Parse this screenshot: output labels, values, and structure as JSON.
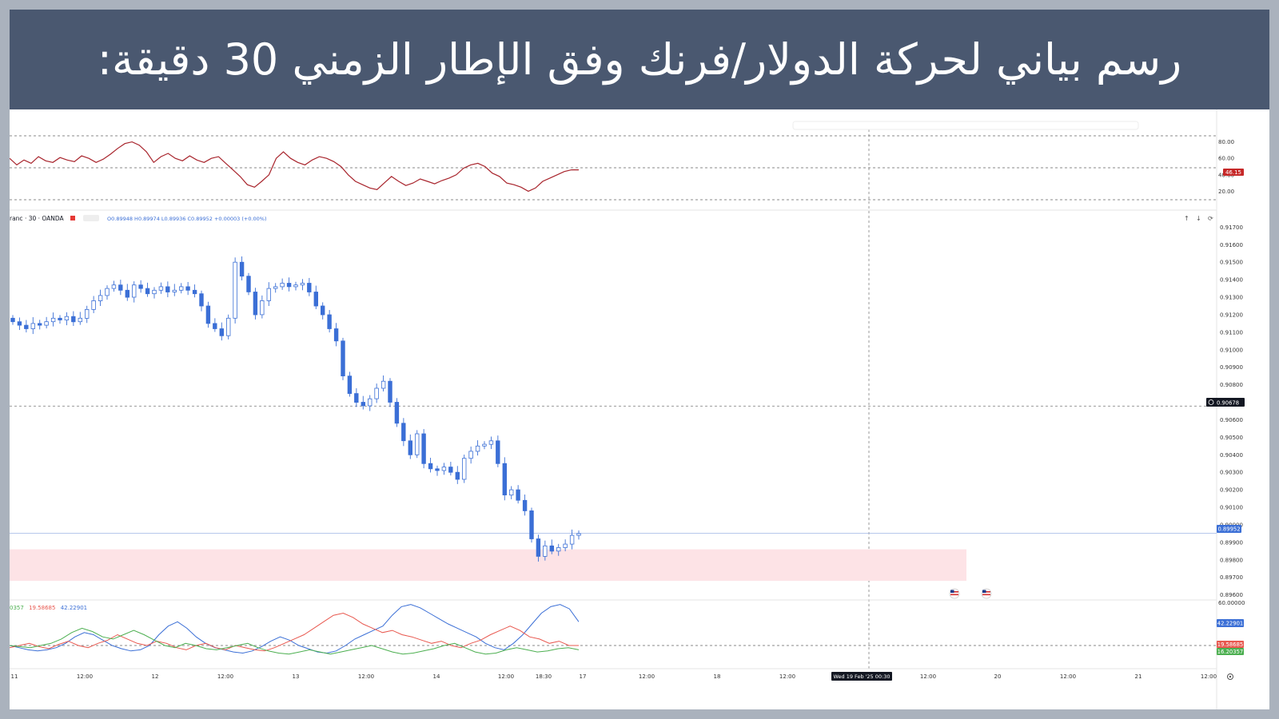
{
  "banner": {
    "title": "رسم بياني لحركة الدولار/فرنك وفق الإطار الزمني 30 دقيقة:"
  },
  "colors": {
    "banner_bg": "#4a5870",
    "candle": "#3b6fd6",
    "rsi_line": "#a8242c",
    "zone_fill": "#fde3e6",
    "adx_line": "#3b6fd6",
    "di_minus": "#e8584f",
    "di_plus": "#4caf50",
    "price_badge": "#3b6fd6",
    "rsi_badge": "#c62828",
    "cursor_badge": "#131722"
  },
  "icons": [
    "add-circle-icon",
    "us-flag-icon",
    "settings-icon",
    "arrow-up-icon",
    "arrow-down-icon",
    "refresh-icon"
  ],
  "chart_data": [
    {
      "type": "line",
      "panel": "RSI",
      "ylim": [
        0,
        100
      ],
      "y_ticks": [
        "80.00",
        "60.00",
        "40.00",
        "20.00"
      ],
      "levels": [
        80,
        50,
        20
      ],
      "current_value_label": "46.15",
      "x_session_count": 80,
      "values": [
        60,
        52,
        58,
        54,
        62,
        57,
        55,
        61,
        58,
        56,
        63,
        60,
        55,
        59,
        65,
        72,
        78,
        80,
        76,
        68,
        55,
        62,
        66,
        60,
        57,
        63,
        58,
        55,
        60,
        62,
        54,
        46,
        38,
        28,
        25,
        32,
        40,
        60,
        68,
        60,
        55,
        52,
        58,
        62,
        60,
        56,
        50,
        40,
        32,
        28,
        24,
        22,
        30,
        38,
        32,
        27,
        30,
        35,
        32,
        29,
        33,
        36,
        40,
        48,
        52,
        54,
        50,
        42,
        38,
        30,
        28,
        25,
        20,
        24,
        32,
        36,
        40,
        44,
        46,
        46
      ]
    },
    {
      "type": "candlestick",
      "panel": "price",
      "symbol_label": "ranc · 30 · OANDA",
      "ohlc_label": "O0.89948 H0.89974 L0.89936 C0.89952 +0.00003 (+0.00%)",
      "y_ticks": [
        "0.91700",
        "0.91600",
        "0.91500",
        "0.91400",
        "0.91300",
        "0.91200",
        "0.91100",
        "0.91000",
        "0.90900",
        "0.90800",
        "0.90700",
        "0.90600",
        "0.90500",
        "0.90400",
        "0.90300",
        "0.90200",
        "0.90100",
        "0.90000",
        "0.89900",
        "0.89800",
        "0.89700",
        "0.89600"
      ],
      "ylim": [
        0.8958,
        0.9172
      ],
      "current_price_label": "0.89952",
      "cursor_price_label": "0.90678",
      "demand_zone": [
        0.8968,
        0.8986
      ],
      "closes": [
        0.9116,
        0.9114,
        0.9112,
        0.9115,
        0.9114,
        0.9116,
        0.9118,
        0.9117,
        0.9119,
        0.9116,
        0.9118,
        0.9123,
        0.9128,
        0.9131,
        0.9135,
        0.9137,
        0.9134,
        0.913,
        0.9137,
        0.9135,
        0.9132,
        0.9134,
        0.9136,
        0.9133,
        0.9134,
        0.9136,
        0.9134,
        0.9132,
        0.9125,
        0.9115,
        0.9112,
        0.9108,
        0.9118,
        0.915,
        0.9142,
        0.9133,
        0.912,
        0.9128,
        0.9135,
        0.9136,
        0.9138,
        0.9136,
        0.9137,
        0.9138,
        0.9133,
        0.9125,
        0.912,
        0.9112,
        0.9105,
        0.9085,
        0.9075,
        0.907,
        0.9068,
        0.9072,
        0.9078,
        0.9082,
        0.907,
        0.9058,
        0.9048,
        0.904,
        0.9052,
        0.9035,
        0.9032,
        0.9031,
        0.9033,
        0.903,
        0.9026,
        0.9038,
        0.9042,
        0.9045,
        0.9046,
        0.9048,
        0.9035,
        0.9017,
        0.902,
        0.9014,
        0.9008,
        0.8992,
        0.8982,
        0.8988,
        0.8985,
        0.8987,
        0.8989,
        0.8994,
        0.8995
      ]
    },
    {
      "type": "line",
      "panel": "ADX/DMI",
      "legend_labels": [
        "0357",
        "19.58685",
        "42.22901"
      ],
      "y_ticks": [
        "60.00000"
      ],
      "levels": [
        20
      ],
      "value_labels": {
        "adx": "42.22901",
        "di_minus": "19.58685",
        "di_plus": "16.20357"
      },
      "series": [
        {
          "values": [
            20,
            18,
            16,
            15,
            16,
            18,
            22,
            28,
            32,
            30,
            25,
            20,
            17,
            15,
            16,
            20,
            30,
            38,
            42,
            36,
            28,
            22,
            18,
            16,
            14,
            13,
            15,
            19,
            24,
            28,
            25,
            20,
            17,
            14,
            13,
            15,
            20,
            26,
            30,
            34,
            38,
            48,
            56,
            58,
            55,
            50,
            45,
            40,
            36,
            32,
            28,
            22,
            18,
            16,
            22,
            30,
            40,
            50,
            56,
            58,
            54,
            42
          ]
        },
        {
          "values": [
            18,
            20,
            22,
            19,
            17,
            21,
            24,
            20,
            18,
            22,
            25,
            30,
            26,
            22,
            20,
            24,
            22,
            18,
            16,
            20,
            22,
            18,
            16,
            20,
            18,
            16,
            15,
            18,
            22,
            26,
            30,
            36,
            42,
            48,
            50,
            46,
            40,
            36,
            32,
            34,
            30,
            28,
            25,
            22,
            24,
            20,
            18,
            22,
            25,
            30,
            34,
            38,
            34,
            28,
            26,
            22,
            24,
            20,
            20
          ]
        },
        {
          "values": [
            20,
            19,
            18,
            20,
            22,
            26,
            32,
            36,
            33,
            28,
            26,
            30,
            34,
            30,
            25,
            20,
            18,
            22,
            20,
            17,
            16,
            18,
            20,
            22,
            18,
            15,
            13,
            12,
            14,
            16,
            14,
            12,
            14,
            16,
            18,
            20,
            17,
            14,
            12,
            13,
            15,
            17,
            20,
            22,
            18,
            14,
            12,
            13,
            16,
            18,
            16,
            14,
            15,
            17,
            18,
            16
          ]
        }
      ]
    }
  ],
  "time_axis": {
    "labels": [
      "11",
      "12:00",
      "12",
      "12:00",
      "13",
      "12:00",
      "14",
      "12:00",
      "18:30",
      "17",
      "12:00",
      "18",
      "12:00",
      "20",
      "12:00",
      "21",
      "12:00"
    ],
    "extra_labels": [
      "12:00"
    ],
    "cursor_label": "Wed 19 Feb '25   00:30"
  }
}
